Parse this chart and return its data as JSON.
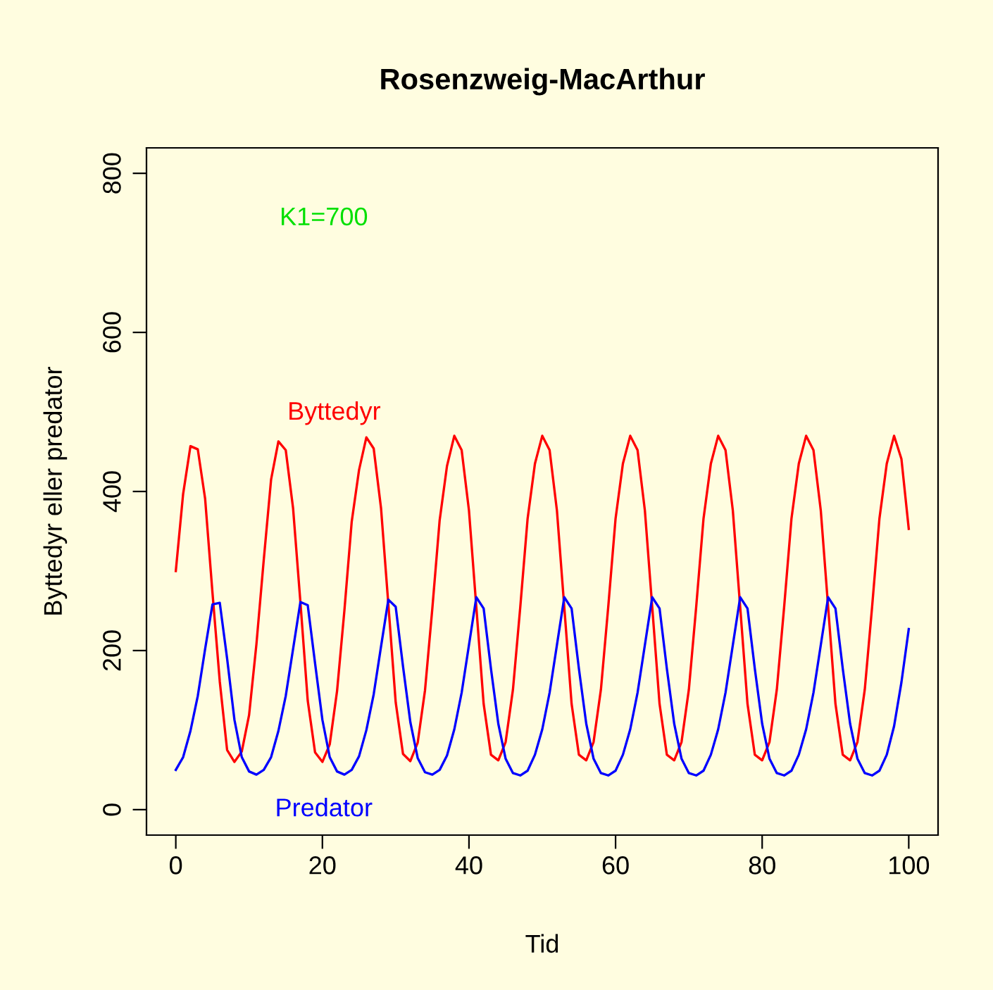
{
  "chart_data": {
    "type": "line",
    "title": "Rosenzweig-MacArthur",
    "xlabel": "Tid",
    "ylabel": "Byttedyr eller predator",
    "x": [
      0,
      1,
      2,
      3,
      4,
      5,
      6,
      7,
      8,
      9,
      10,
      11,
      12,
      13,
      14,
      15,
      16,
      17,
      18,
      19,
      20,
      21,
      22,
      23,
      24,
      25,
      26,
      27,
      28,
      29,
      30,
      31,
      32,
      33,
      34,
      35,
      36,
      37,
      38,
      39,
      40,
      41,
      42,
      43,
      44,
      45,
      46,
      47,
      48,
      49,
      50,
      51,
      52,
      53,
      54,
      55,
      56,
      57,
      58,
      59,
      60,
      61,
      62,
      63,
      64,
      65,
      66,
      67,
      68,
      69,
      70,
      71,
      72,
      73,
      74,
      75,
      76,
      77,
      78,
      79,
      80,
      81,
      82,
      83,
      84,
      85,
      86,
      87,
      88,
      89,
      90,
      91,
      92,
      93,
      94,
      95,
      96,
      97,
      98,
      99,
      100
    ],
    "series": [
      {
        "name": "Byttedyr",
        "color": "#ff0000",
        "values": [
          300,
          397,
          457,
          453,
          391,
          273,
          161,
          75,
          60,
          73,
          119,
          208,
          314,
          415,
          463,
          452,
          379,
          261,
          137,
          72,
          60,
          82,
          149,
          250,
          362,
          427,
          468,
          454,
          379,
          258,
          135,
          70,
          61,
          84,
          150,
          253,
          364,
          432,
          470,
          452,
          376,
          255,
          133,
          69,
          62,
          85,
          151,
          255,
          366,
          435,
          470,
          452,
          376,
          255,
          133,
          69,
          62,
          85,
          151,
          255,
          366,
          435,
          470,
          452,
          376,
          255,
          133,
          69,
          62,
          85,
          151,
          255,
          366,
          435,
          470,
          452,
          376,
          255,
          133,
          69,
          62,
          85,
          151,
          255,
          366,
          435,
          470,
          452,
          376,
          255,
          133,
          69,
          62,
          85,
          151,
          255,
          366,
          435,
          470,
          441,
          353
        ]
      },
      {
        "name": "Predator",
        "color": "#0000ff",
        "values": [
          50,
          66,
          99,
          143,
          202,
          258,
          260,
          190,
          113,
          66,
          48,
          44,
          50,
          66,
          99,
          143,
          202,
          261,
          257,
          184,
          113,
          66,
          48,
          44,
          50,
          67,
          100,
          145,
          205,
          264,
          255,
          180,
          110,
          65,
          47,
          44,
          50,
          68,
          101,
          147,
          207,
          267,
          253,
          177,
          108,
          64,
          46,
          43,
          49,
          69,
          101,
          147,
          207,
          267,
          253,
          177,
          108,
          64,
          46,
          43,
          49,
          69,
          101,
          147,
          207,
          267,
          253,
          177,
          108,
          64,
          46,
          43,
          49,
          69,
          101,
          147,
          207,
          267,
          253,
          177,
          108,
          64,
          46,
          43,
          49,
          69,
          101,
          147,
          207,
          267,
          253,
          177,
          108,
          64,
          46,
          43,
          49,
          69,
          105,
          160,
          227
        ]
      }
    ],
    "annotations": [
      "K1=700"
    ],
    "xlim": [
      -4,
      104
    ],
    "ylim": [
      -32,
      832
    ],
    "xticks": [
      0,
      20,
      40,
      60,
      80,
      100
    ],
    "yticks": [
      0,
      200,
      400,
      600,
      800
    ],
    "grid": false,
    "legend": false,
    "marker": "none",
    "line_style": "solid"
  }
}
